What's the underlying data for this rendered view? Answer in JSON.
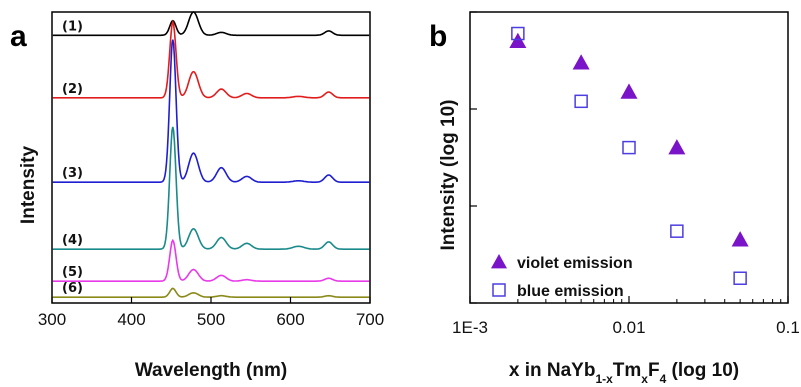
{
  "panels": {
    "a_label": "a",
    "b_label": "b"
  },
  "chart_data": [
    {
      "type": "line",
      "panel": "a",
      "xlabel": "Wavelength (nm)",
      "ylabel": "Intensity",
      "xlim": [
        300,
        700
      ],
      "xticks": [
        300,
        400,
        500,
        600,
        700
      ],
      "yticks": [],
      "grid": false,
      "peaks_nm": [
        452,
        478,
        513,
        545,
        610,
        648
      ],
      "series": [
        {
          "label": "(1)",
          "color": "#000000",
          "offset": 0.92,
          "amplitudes": [
            0.05,
            0.08,
            0.01,
            0.0,
            0.0,
            0.015
          ]
        },
        {
          "label": "(2)",
          "color": "#e21d1d",
          "offset": 0.705,
          "amplitudes": [
            0.26,
            0.09,
            0.03,
            0.015,
            0.005,
            0.02
          ]
        },
        {
          "label": "(3)",
          "color": "#1f1fd0",
          "offset": 0.415,
          "amplitudes": [
            0.49,
            0.1,
            0.05,
            0.02,
            0.005,
            0.025
          ]
        },
        {
          "label": "(4)",
          "color": "#1a8a8a",
          "offset": 0.185,
          "amplitudes": [
            0.42,
            0.07,
            0.04,
            0.02,
            0.01,
            0.025
          ]
        },
        {
          "label": "(5)",
          "color": "#e83ae8",
          "offset": 0.075,
          "amplitudes": [
            0.14,
            0.04,
            0.02,
            0.005,
            0.0,
            0.01
          ]
        },
        {
          "label": "(6)",
          "color": "#8a8a1a",
          "offset": 0.02,
          "amplitudes": [
            0.03,
            0.015,
            0.005,
            0.0,
            0.0,
            0.005
          ]
        }
      ]
    },
    {
      "type": "scatter",
      "panel": "b",
      "xlabel_parts": [
        "x in NaYb",
        "1-x",
        "Tm",
        "x",
        "F",
        "4",
        " (log 10)"
      ],
      "ylabel": "Intensity (log 10)",
      "xscale": "log",
      "yscale": "log",
      "xlim": [
        0.001,
        0.1
      ],
      "ylim": [
        0.1,
        100
      ],
      "xtick_values": [
        0.001,
        0.01,
        0.1
      ],
      "xtick_labels": [
        "1E-3",
        "0.01",
        "0.1"
      ],
      "grid": false,
      "legend_position": "bottom-left",
      "series": [
        {
          "name": "violet emission",
          "marker": "triangle-filled",
          "color": "#7a14c8",
          "x": [
            0.002,
            0.005,
            0.01,
            0.02,
            0.05
          ],
          "y": [
            50,
            30,
            15,
            4,
            0.45
          ]
        },
        {
          "name": "blue emission",
          "marker": "square-open",
          "color": "#4c3ee0",
          "x": [
            0.002,
            0.005,
            0.01,
            0.02,
            0.05
          ],
          "y": [
            60,
            12,
            4,
            0.55,
            0.18
          ]
        }
      ]
    }
  ]
}
